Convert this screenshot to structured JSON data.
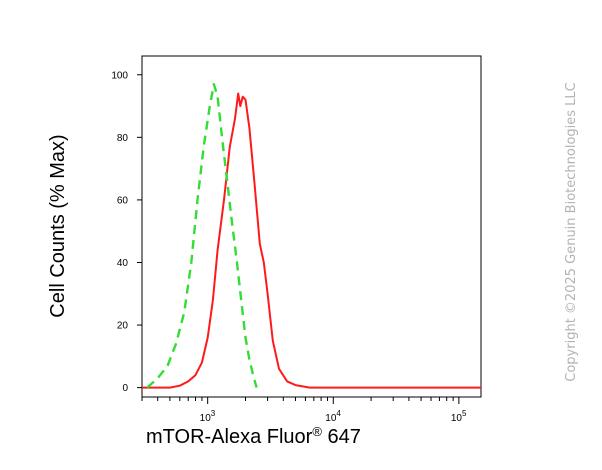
{
  "chart_data": {
    "type": "line",
    "title": "",
    "xlabel_main": "mTOR-Alexa Fluor",
    "xlabel_sup": "®",
    "xlabel_tail": " 647",
    "ylabel": "Cell Counts (% Max)",
    "xscale": "log",
    "xlim": [
      300,
      150000
    ],
    "ylim": [
      -3,
      106
    ],
    "yticks": [
      0,
      20,
      40,
      60,
      80,
      100
    ],
    "ytick_labels": [
      "0",
      "20",
      "40",
      "60",
      "80",
      "100"
    ],
    "xticks": [
      1000,
      10000,
      100000
    ],
    "xtick_labels": [
      {
        "base": "10",
        "exp": "3"
      },
      {
        "base": "10",
        "exp": "4"
      },
      {
        "base": "10",
        "exp": "5"
      }
    ],
    "grid": false,
    "legend": "none",
    "series": [
      {
        "color": "#ff1a1a",
        "dash": "solid",
        "points": [
          [
            300,
            0
          ],
          [
            500,
            0
          ],
          [
            600,
            0.6
          ],
          [
            700,
            2
          ],
          [
            800,
            4
          ],
          [
            900,
            8
          ],
          [
            1000,
            16
          ],
          [
            1100,
            28
          ],
          [
            1200,
            44
          ],
          [
            1350,
            60
          ],
          [
            1500,
            77
          ],
          [
            1650,
            86
          ],
          [
            1750,
            94
          ],
          [
            1820,
            90
          ],
          [
            1900,
            93
          ],
          [
            2000,
            92
          ],
          [
            2150,
            83
          ],
          [
            2350,
            66
          ],
          [
            2600,
            46
          ],
          [
            2800,
            40
          ],
          [
            3000,
            30
          ],
          [
            3300,
            15
          ],
          [
            3700,
            6
          ],
          [
            4300,
            2
          ],
          [
            5000,
            0.8
          ],
          [
            6500,
            0
          ],
          [
            150000,
            0
          ]
        ]
      },
      {
        "color": "#33dd33",
        "dash": "dashed",
        "points": [
          [
            330,
            0
          ],
          [
            400,
            3
          ],
          [
            480,
            7
          ],
          [
            560,
            14
          ],
          [
            650,
            24
          ],
          [
            740,
            40
          ],
          [
            830,
            60
          ],
          [
            930,
            77
          ],
          [
            1040,
            90
          ],
          [
            1120,
            97
          ],
          [
            1200,
            93
          ],
          [
            1300,
            80
          ],
          [
            1420,
            67
          ],
          [
            1560,
            53
          ],
          [
            1700,
            41
          ],
          [
            1850,
            28
          ],
          [
            2000,
            16
          ],
          [
            2150,
            9
          ],
          [
            2300,
            4
          ],
          [
            2450,
            0
          ]
        ]
      }
    ]
  },
  "watermark": "Copyright ©2025 Genuin Biotechnologies LLC"
}
